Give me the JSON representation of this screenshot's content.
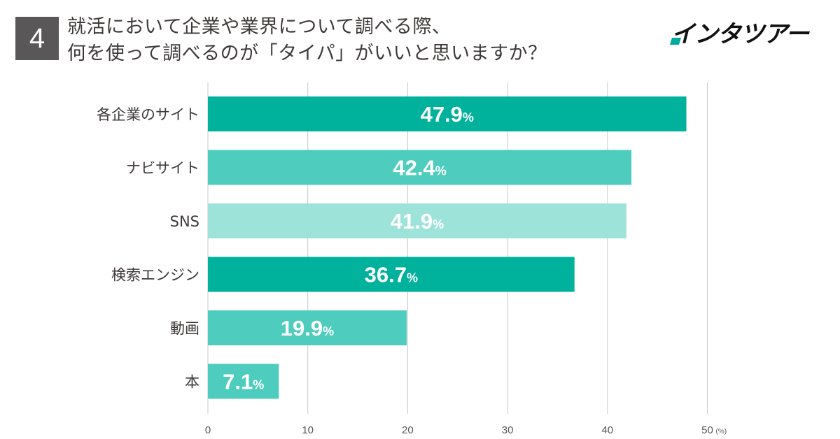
{
  "header": {
    "number": "4",
    "title_line1": "就活において企業や業界について調べる際、",
    "title_line2": "何を使って調べるのが「タイパ」がいいと思いますか？",
    "logo_text": "インタツアー",
    "accent_color": "#00a99d"
  },
  "chart_data": {
    "type": "bar",
    "orientation": "horizontal",
    "categories": [
      "各企業のサイト",
      "ナビサイト",
      "SNS",
      "検索エンジン",
      "動画",
      "本"
    ],
    "values": [
      47.9,
      42.4,
      41.9,
      36.7,
      19.9,
      7.1
    ],
    "value_suffix": "%",
    "bar_colors": [
      "#00b19c",
      "#4ecdbe",
      "#9ee3d9",
      "#00b19c",
      "#4ecdbe",
      "#4ecdbe"
    ],
    "xlim": [
      0,
      50
    ],
    "xticks": [
      0,
      10,
      20,
      30,
      40,
      50
    ],
    "x_unit": "(%)",
    "grid": true
  }
}
